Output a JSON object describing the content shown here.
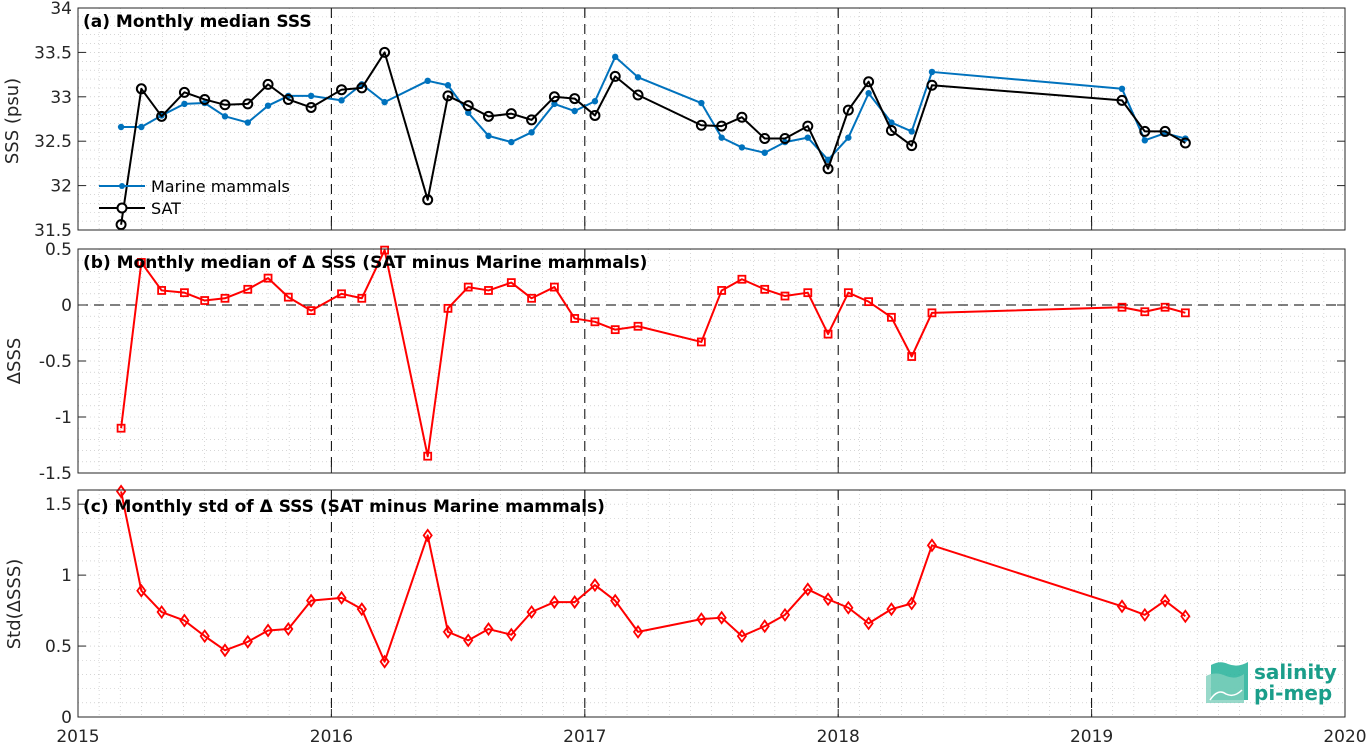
{
  "chart_data": [
    {
      "type": "line",
      "title": "(a) Monthly median SSS",
      "ylabel": "SSS (psu)",
      "xlabel": "",
      "xlim": [
        2015,
        2020
      ],
      "ylim": [
        31.5,
        34
      ],
      "xticks": [
        "2015",
        "2016",
        "2017",
        "2018",
        "2019",
        "2020"
      ],
      "yticks": [
        "31.5",
        "32",
        "32.5",
        "33",
        "33.5",
        "34"
      ],
      "grid": "dotted minor grid, dashed vertical lines at year boundaries",
      "legend": "bottom-left",
      "series": [
        {
          "name": "Marine mammals",
          "color": "#0072BD",
          "marker": "dot",
          "x": [
            2015.17,
            2015.25,
            2015.33,
            2015.42,
            2015.5,
            2015.58,
            2015.67,
            2015.75,
            2015.83,
            2015.92,
            2016.04,
            2016.12,
            2016.21,
            2016.38,
            2016.46,
            2016.54,
            2016.62,
            2016.71,
            2016.79,
            2016.88,
            2016.96,
            2017.04,
            2017.12,
            2017.21,
            2017.46,
            2017.54,
            2017.62,
            2017.71,
            2017.79,
            2017.88,
            2017.96,
            2018.04,
            2018.12,
            2018.21,
            2018.29,
            2018.37,
            2019.12,
            2019.21,
            2019.29,
            2019.37
          ],
          "values": [
            32.66,
            32.66,
            32.79,
            32.92,
            32.93,
            32.78,
            32.71,
            32.9,
            33.01,
            33.01,
            32.96,
            33.14,
            32.94,
            33.18,
            33.13,
            32.82,
            32.56,
            32.49,
            32.6,
            32.92,
            32.84,
            32.95,
            33.45,
            33.22,
            32.93,
            32.54,
            32.43,
            32.37,
            32.49,
            32.54,
            32.29,
            32.54,
            33.04,
            32.71,
            32.61,
            33.28,
            33.09,
            32.51,
            32.59,
            32.53
          ]
        },
        {
          "name": "SAT",
          "color": "#000000",
          "marker": "circle",
          "x": [
            2015.17,
            2015.25,
            2015.33,
            2015.42,
            2015.5,
            2015.58,
            2015.67,
            2015.75,
            2015.83,
            2015.92,
            2016.04,
            2016.12,
            2016.21,
            2016.38,
            2016.46,
            2016.54,
            2016.62,
            2016.71,
            2016.79,
            2016.88,
            2016.96,
            2017.04,
            2017.12,
            2017.21,
            2017.46,
            2017.54,
            2017.62,
            2017.71,
            2017.79,
            2017.88,
            2017.96,
            2018.04,
            2018.12,
            2018.21,
            2018.29,
            2018.37,
            2019.12,
            2019.21,
            2019.29,
            2019.37
          ],
          "values": [
            31.56,
            33.09,
            32.78,
            33.05,
            32.97,
            32.91,
            32.92,
            33.14,
            32.97,
            32.88,
            33.08,
            33.1,
            33.5,
            31.84,
            33.01,
            32.9,
            32.78,
            32.81,
            32.74,
            33.0,
            32.98,
            32.79,
            33.23,
            33.02,
            32.68,
            32.67,
            32.77,
            32.53,
            32.53,
            32.67,
            32.19,
            32.85,
            33.17,
            32.62,
            32.45,
            33.13,
            32.96,
            32.61,
            32.61,
            32.48
          ]
        }
      ]
    },
    {
      "type": "line",
      "title": "(b) Monthly median of Δ SSS (SAT minus Marine mammals)",
      "ylabel": "ΔSSS",
      "xlabel": "",
      "xlim": [
        2015,
        2020
      ],
      "ylim": [
        -1.5,
        0.5
      ],
      "xticks": [],
      "yticks": [
        "-1.5",
        "-1",
        "-0.5",
        "0",
        "0.5"
      ],
      "grid": "dotted minor grid, dashed zero line",
      "series": [
        {
          "color": "#FF0000",
          "marker": "square",
          "x": [
            2015.17,
            2015.25,
            2015.33,
            2015.42,
            2015.5,
            2015.58,
            2015.67,
            2015.75,
            2015.83,
            2015.92,
            2016.04,
            2016.12,
            2016.21,
            2016.38,
            2016.46,
            2016.54,
            2016.62,
            2016.71,
            2016.79,
            2016.88,
            2016.96,
            2017.04,
            2017.12,
            2017.21,
            2017.46,
            2017.54,
            2017.62,
            2017.71,
            2017.79,
            2017.88,
            2017.96,
            2018.04,
            2018.12,
            2018.21,
            2018.29,
            2018.37,
            2019.12,
            2019.21,
            2019.29,
            2019.37
          ],
          "values": [
            -1.1,
            0.38,
            0.13,
            0.11,
            0.04,
            0.06,
            0.14,
            0.24,
            0.07,
            -0.05,
            0.1,
            0.06,
            0.49,
            -1.35,
            -0.03,
            0.16,
            0.13,
            0.2,
            0.06,
            0.16,
            -0.12,
            -0.15,
            -0.22,
            -0.19,
            -0.33,
            0.13,
            0.23,
            0.14,
            0.08,
            0.11,
            -0.26,
            0.11,
            0.03,
            -0.11,
            -0.46,
            -0.07,
            -0.02,
            -0.06,
            -0.02,
            -0.07
          ]
        }
      ]
    },
    {
      "type": "line",
      "title": "(c) Monthly std of Δ SSS (SAT minus Marine mammals)",
      "ylabel": "Std(ΔSSS)",
      "xlabel": "",
      "xlim": [
        2015,
        2020
      ],
      "ylim": [
        0,
        1.6
      ],
      "xticks": [
        "2015",
        "2016",
        "2017",
        "2018",
        "2019",
        "2020"
      ],
      "yticks": [
        "0",
        "0.5",
        "1",
        "1.5"
      ],
      "grid": "dotted minor grid, dashed vertical lines at year boundaries",
      "series": [
        {
          "color": "#FF0000",
          "marker": "diamond",
          "x": [
            2015.17,
            2015.25,
            2015.33,
            2015.42,
            2015.5,
            2015.58,
            2015.67,
            2015.75,
            2015.83,
            2015.92,
            2016.04,
            2016.12,
            2016.21,
            2016.38,
            2016.46,
            2016.54,
            2016.62,
            2016.71,
            2016.79,
            2016.88,
            2016.96,
            2017.04,
            2017.12,
            2017.21,
            2017.46,
            2017.54,
            2017.62,
            2017.71,
            2017.79,
            2017.88,
            2017.96,
            2018.04,
            2018.12,
            2018.21,
            2018.29,
            2018.37,
            2019.12,
            2019.21,
            2019.29,
            2019.37
          ],
          "values": [
            1.59,
            0.89,
            0.74,
            0.68,
            0.57,
            0.47,
            0.53,
            0.61,
            0.62,
            0.82,
            0.84,
            0.76,
            0.39,
            1.28,
            0.6,
            0.54,
            0.62,
            0.58,
            0.74,
            0.81,
            0.81,
            0.93,
            0.82,
            0.6,
            0.69,
            0.7,
            0.57,
            0.64,
            0.72,
            0.9,
            0.83,
            0.77,
            0.66,
            0.76,
            0.8,
            1.21,
            0.78,
            0.72,
            0.82,
            0.71
          ]
        }
      ]
    }
  ],
  "logo": {
    "line1": "salinity",
    "line2": "pi-mep",
    "color": "#1a9e8a"
  }
}
